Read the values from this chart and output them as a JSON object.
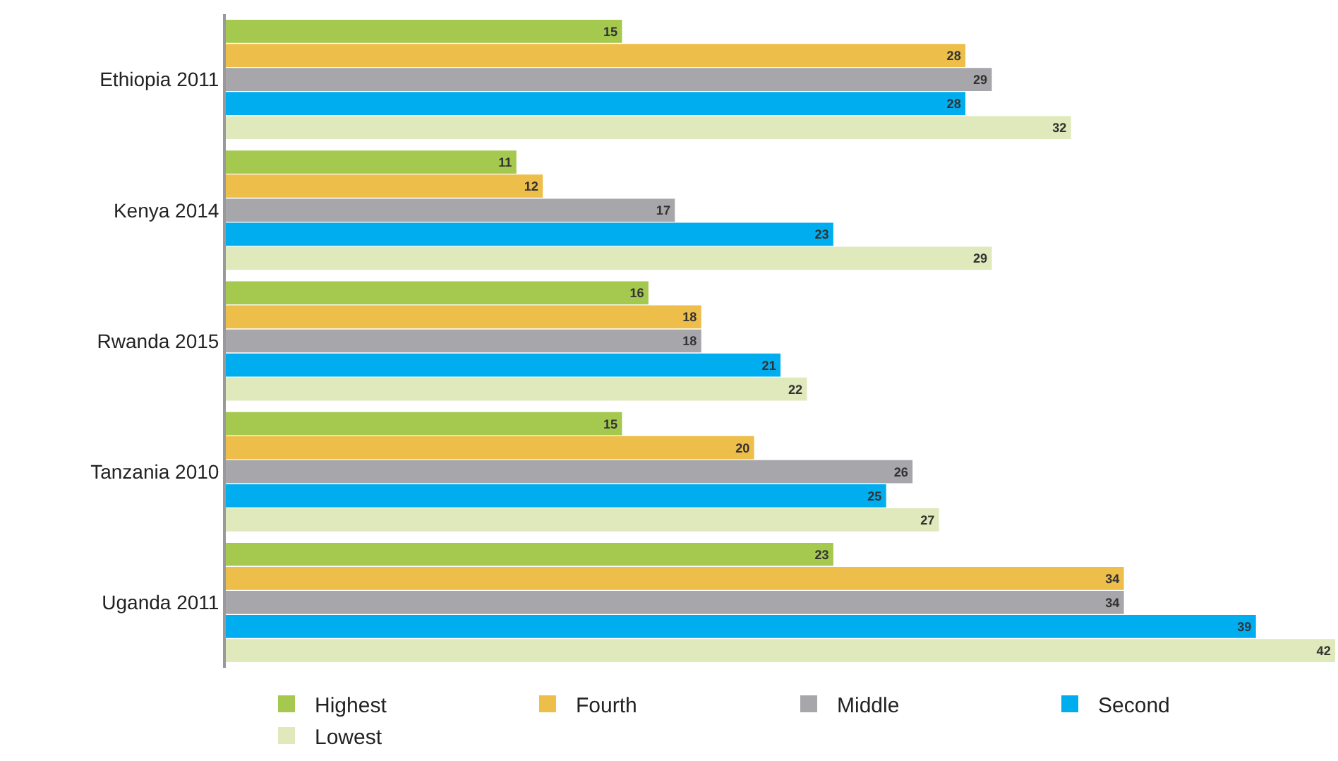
{
  "chart_data": {
    "type": "bar",
    "orientation": "horizontal",
    "categories": [
      "Ethiopia 2011",
      "Kenya 2014",
      "Rwanda 2015",
      "Tanzania 2010",
      "Uganda 2011"
    ],
    "series": [
      {
        "name": "Highest",
        "color": "#a5c84f",
        "values": [
          15,
          11,
          16,
          15,
          23
        ]
      },
      {
        "name": "Fourth",
        "color": "#eebe4a",
        "values": [
          28,
          12,
          18,
          20,
          34
        ]
      },
      {
        "name": "Middle",
        "color": "#a7a6aa",
        "values": [
          29,
          17,
          18,
          26,
          34
        ]
      },
      {
        "name": "Second",
        "color": "#00aeef",
        "values": [
          28,
          23,
          21,
          25,
          39
        ]
      },
      {
        "name": "Lowest",
        "color": "#dfe9bb",
        "values": [
          32,
          29,
          22,
          27,
          42
        ]
      }
    ],
    "xlim": [
      0,
      42
    ],
    "tick_labels": "y",
    "data_labels": true,
    "legend": "bottom"
  }
}
